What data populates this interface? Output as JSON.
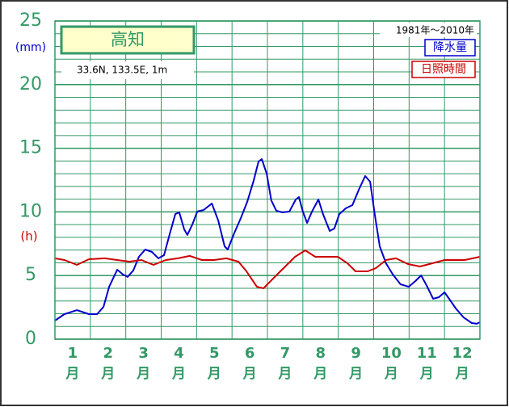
{
  "chart_data": {
    "type": "line",
    "title": "高知",
    "subtitle": "33.6N,  133.5E,  1m",
    "period": "1981年〜2010年",
    "y_unit_left": "(mm)",
    "y_unit_right": "(h)",
    "x_unit": "月",
    "xlim": [
      0.5,
      12.5
    ],
    "xticks": [
      1,
      2,
      3,
      4,
      5,
      6,
      7,
      8,
      9,
      10,
      11,
      12
    ],
    "xgrid": [
      1.5,
      2.5,
      3.5,
      4.5,
      5.5,
      6.5,
      7.5,
      8.5,
      9.5,
      10.5,
      11.5
    ],
    "ylim": [
      0,
      25
    ],
    "yticks": [
      0,
      5,
      10,
      15,
      20,
      25
    ],
    "minor_yticks": [
      1,
      2,
      3,
      4,
      6,
      7,
      8,
      9,
      11,
      12,
      13,
      14,
      16,
      17,
      18,
      19,
      21,
      22,
      23,
      24
    ],
    "grid_color": "#339966",
    "series": [
      {
        "name": "降水量",
        "color": "#0000cc",
        "x": [
          0.5,
          0.77,
          1.12,
          1.46,
          1.69,
          1.87,
          2.03,
          2.26,
          2.42,
          2.55,
          2.71,
          2.87,
          3.05,
          3.24,
          3.42,
          3.58,
          3.74,
          3.9,
          4.01,
          4.15,
          4.24,
          4.38,
          4.52,
          4.7,
          4.93,
          5.11,
          5.29,
          5.38,
          5.56,
          5.75,
          5.93,
          6.11,
          6.25,
          6.34,
          6.48,
          6.61,
          6.75,
          6.93,
          7.12,
          7.3,
          7.39,
          7.5,
          7.62,
          7.76,
          7.94,
          8.07,
          8.26,
          8.39,
          8.53,
          8.71,
          8.9,
          9.08,
          9.26,
          9.4,
          9.53,
          9.67,
          9.85,
          10.04,
          10.26,
          10.49,
          10.68,
          10.84,
          11.0,
          11.18,
          11.34,
          11.5,
          11.63,
          11.82,
          12.04,
          12.27,
          12.41,
          12.5
        ],
        "values": [
          1.46,
          1.97,
          2.28,
          1.97,
          1.97,
          2.54,
          4.12,
          5.46,
          5.08,
          4.89,
          5.39,
          6.47,
          7.04,
          6.85,
          6.35,
          6.6,
          8.25,
          9.83,
          9.96,
          8.63,
          8.19,
          9.01,
          10.03,
          10.15,
          10.66,
          9.33,
          7.3,
          7.04,
          8.31,
          9.52,
          10.79,
          12.44,
          13.96,
          14.15,
          13.0,
          10.9,
          10.09,
          9.96,
          10.03,
          10.98,
          11.17,
          10.03,
          9.14,
          10.03,
          10.98,
          9.83,
          8.5,
          8.69,
          9.83,
          10.28,
          10.53,
          11.74,
          12.82,
          12.37,
          9.83,
          7.3,
          5.96,
          5.08,
          4.31,
          4.12,
          4.57,
          5.01,
          4.19,
          3.17,
          3.3,
          3.68,
          3.17,
          2.41,
          1.71,
          1.27,
          1.21,
          1.33
        ]
      },
      {
        "name": "日照時間",
        "color": "#cc0000",
        "x": [
          0.5,
          0.77,
          1.12,
          1.46,
          1.91,
          2.26,
          2.6,
          2.94,
          3.28,
          3.63,
          3.97,
          4.31,
          4.65,
          4.99,
          5.34,
          5.68,
          5.91,
          6.2,
          6.39,
          6.57,
          6.82,
          7.05,
          7.28,
          7.57,
          7.85,
          8.19,
          8.49,
          8.76,
          8.99,
          9.33,
          9.56,
          9.85,
          10.13,
          10.47,
          10.81,
          11.15,
          11.5,
          12.07,
          12.5
        ],
        "values": [
          6.35,
          6.22,
          5.84,
          6.28,
          6.35,
          6.22,
          6.09,
          6.22,
          5.84,
          6.22,
          6.35,
          6.54,
          6.22,
          6.22,
          6.35,
          6.09,
          5.33,
          4.12,
          4.0,
          4.51,
          5.2,
          5.84,
          6.47,
          6.98,
          6.47,
          6.47,
          6.47,
          5.96,
          5.33,
          5.33,
          5.58,
          6.22,
          6.35,
          5.9,
          5.71,
          5.96,
          6.22,
          6.22,
          6.47
        ]
      }
    ]
  }
}
